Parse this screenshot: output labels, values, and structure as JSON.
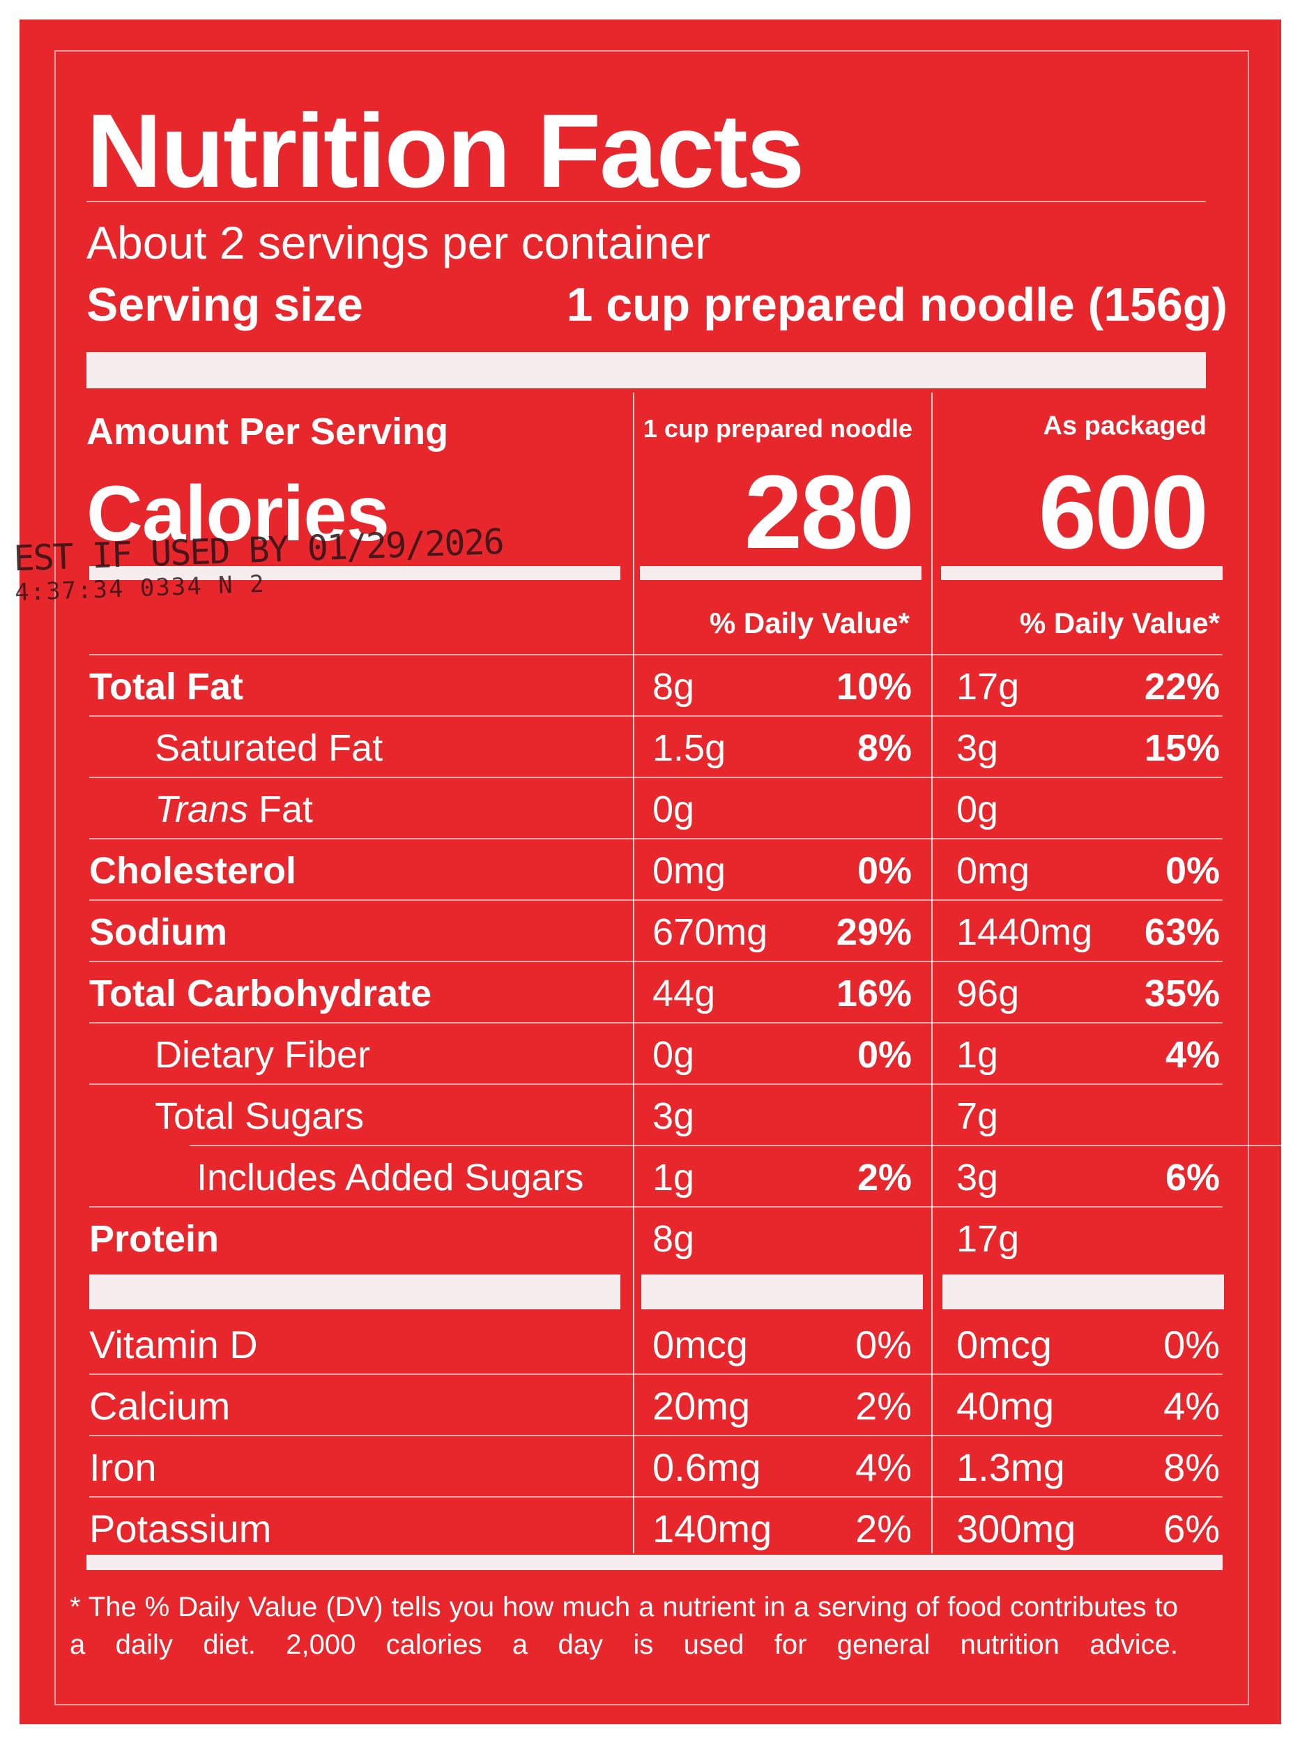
{
  "label": {
    "title": "Nutrition Facts",
    "servings_per_container": "About 2 servings per container",
    "serving_size_label": "Serving size",
    "serving_size_value": "1 cup prepared noodle (156g)",
    "amount_per_serving": "Amount Per Serving",
    "calories_label": "Calories",
    "columns": [
      {
        "header": "1 cup prepared noodle",
        "calories": "280",
        "dv_header": "% Daily Value*"
      },
      {
        "header": "As packaged",
        "calories": "600",
        "dv_header": "% Daily Value*"
      }
    ],
    "nutrients": [
      {
        "name": "Total Fat",
        "bold": true,
        "indent": 0,
        "c1_amount": "8g",
        "c1_dv": "10%",
        "c2_amount": "17g",
        "c2_dv": "22%"
      },
      {
        "name": "Saturated Fat",
        "bold": false,
        "indent": 1,
        "c1_amount": "1.5g",
        "c1_dv": "8%",
        "c2_amount": "3g",
        "c2_dv": "15%"
      },
      {
        "name": "Trans",
        "name_suffix": " Fat",
        "italic": true,
        "bold": false,
        "indent": 1,
        "c1_amount": "0g",
        "c1_dv": "",
        "c2_amount": "0g",
        "c2_dv": ""
      },
      {
        "name": "Cholesterol",
        "bold": true,
        "indent": 0,
        "c1_amount": "0mg",
        "c1_dv": "0%",
        "c2_amount": "0mg",
        "c2_dv": "0%"
      },
      {
        "name": "Sodium",
        "bold": true,
        "indent": 0,
        "c1_amount": "670mg",
        "c1_dv": "29%",
        "c2_amount": "1440mg",
        "c2_dv": "63%"
      },
      {
        "name": "Total Carbohydrate",
        "bold": true,
        "indent": 0,
        "c1_amount": "44g",
        "c1_dv": "16%",
        "c2_amount": "96g",
        "c2_dv": "35%"
      },
      {
        "name": "Dietary Fiber",
        "bold": false,
        "indent": 1,
        "c1_amount": "0g",
        "c1_dv": "0%",
        "c2_amount": "1g",
        "c2_dv": "4%"
      },
      {
        "name": "Total Sugars",
        "bold": false,
        "indent": 1,
        "c1_amount": "3g",
        "c1_dv": "",
        "c2_amount": "7g",
        "c2_dv": ""
      },
      {
        "name": "Includes Added Sugars",
        "bold": false,
        "indent": 2,
        "c1_amount": "1g",
        "c1_dv": "2%",
        "c2_amount": "3g",
        "c2_dv": "6%"
      },
      {
        "name": "Protein",
        "bold": true,
        "indent": 0,
        "c1_amount": "8g",
        "c1_dv": "",
        "c2_amount": "17g",
        "c2_dv": ""
      }
    ],
    "vitamins": [
      {
        "name": "Vitamin D",
        "c1_amount": "0mcg",
        "c1_dv": "0%",
        "c2_amount": "0mcg",
        "c2_dv": "0%"
      },
      {
        "name": "Calcium",
        "c1_amount": "20mg",
        "c1_dv": "2%",
        "c2_amount": "40mg",
        "c2_dv": "4%"
      },
      {
        "name": "Iron",
        "c1_amount": "0.6mg",
        "c1_dv": "4%",
        "c2_amount": "1.3mg",
        "c2_dv": "8%"
      },
      {
        "name": "Potassium",
        "c1_amount": "140mg",
        "c1_dv": "2%",
        "c2_amount": "300mg",
        "c2_dv": "6%"
      }
    ],
    "footnote": "* The % Daily Value (DV) tells you how much a nutrient in a serving of food contributes to a daily diet. 2,000 calories a day is used for general nutrition advice."
  },
  "stamp": {
    "line1": "EST IF USED BY 01/29/2026",
    "line2": "4:37:34 0334 N 2"
  },
  "colors": {
    "background": "#e8272c",
    "text": "#ffffff",
    "bars": "#f6eeee",
    "stamp_ink": "#2b1418"
  }
}
